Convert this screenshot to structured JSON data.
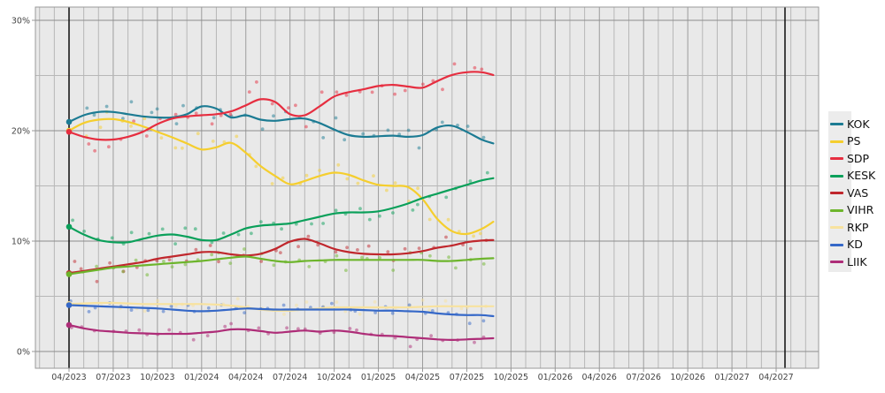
{
  "chart_data": {
    "type": "line",
    "title": "",
    "description": "Finnish party support polling: scatter of polls with smoothed trend lines, election day markers April 2023 and April 2027",
    "x_tick_labels": [
      "04/2023",
      "07/2023",
      "10/2023",
      "01/2024",
      "04/2024",
      "07/2024",
      "10/2024",
      "01/2025",
      "04/2025",
      "07/2025",
      "10/2025",
      "01/2026",
      "04/2026",
      "07/2026",
      "10/2026",
      "01/2027",
      "04/2027"
    ],
    "x_tick_months": [
      0,
      3,
      6,
      9,
      12,
      15,
      18,
      21,
      24,
      27,
      30,
      33,
      36,
      39,
      42,
      45,
      48
    ],
    "x_months_range": [
      -2,
      50
    ],
    "y_tick_labels": [
      "0%",
      "10%",
      "20%",
      "30%"
    ],
    "y_major_values": [
      0,
      10,
      20,
      30
    ],
    "y_minor_step": 5,
    "ylim": [
      -1.5,
      31.2
    ],
    "grid_on": true,
    "legend_position": "right-outside",
    "election_line_months": [
      0,
      48.6
    ],
    "colors": {
      "plot_bg": "#e9e9e9",
      "grid_minor": "#b7b7b7",
      "grid_quarter": "#9c9c9c",
      "grid_major_h": "#8d8d8d",
      "border": "#999999",
      "election_line": "#1a1a1a",
      "tick_text": "#444444"
    },
    "series": [
      {
        "name": "KOK",
        "color": "#1c7b93",
        "jitter": 0.7,
        "values": [
          20.8,
          21.4,
          21.7,
          21.7,
          21.5,
          21.3,
          21.2,
          21.2,
          21.5,
          22.2,
          22.0,
          21.2,
          21.4,
          21.0,
          20.9,
          21.05,
          21.1,
          20.7,
          20.1,
          19.6,
          19.45,
          19.5,
          19.55,
          19.45,
          19.6,
          20.3,
          20.45,
          19.9,
          19.2
        ],
        "end_month": 28.8,
        "end_value": 18.85
      },
      {
        "name": "PS",
        "color": "#f5ce2e",
        "jitter": 0.7,
        "values": [
          20.0,
          20.7,
          21.0,
          21.05,
          20.8,
          20.4,
          19.9,
          19.4,
          18.85,
          18.3,
          18.5,
          18.9,
          18.0,
          16.8,
          15.9,
          15.15,
          15.45,
          15.9,
          16.2,
          16.0,
          15.5,
          15.1,
          15.0,
          14.9,
          13.8,
          12.0,
          10.9,
          10.65,
          11.1
        ],
        "end_month": 28.8,
        "end_value": 11.75
      },
      {
        "name": "SDP",
        "color": "#e62e40",
        "jitter": 0.7,
        "values": [
          19.9,
          19.45,
          19.2,
          19.2,
          19.45,
          19.9,
          20.6,
          21.1,
          21.3,
          21.4,
          21.5,
          21.75,
          22.3,
          22.85,
          22.6,
          21.5,
          21.4,
          22.2,
          23.1,
          23.5,
          23.75,
          24.05,
          24.15,
          24.0,
          23.9,
          24.5,
          25.05,
          25.3,
          25.3
        ],
        "end_month": 28.8,
        "end_value": 25.05
      },
      {
        "name": "KESK",
        "color": "#0aa05a",
        "jitter": 0.55,
        "values": [
          11.3,
          10.6,
          10.1,
          9.9,
          9.9,
          10.2,
          10.5,
          10.6,
          10.4,
          10.1,
          10.1,
          10.6,
          11.15,
          11.4,
          11.5,
          11.6,
          11.9,
          12.2,
          12.5,
          12.6,
          12.6,
          12.7,
          13.0,
          13.4,
          13.9,
          14.3,
          14.7,
          15.1,
          15.5
        ],
        "end_month": 28.8,
        "end_value": 15.7
      },
      {
        "name": "VAS",
        "color": "#c0272d",
        "jitter": 0.45,
        "values": [
          7.1,
          7.3,
          7.5,
          7.7,
          7.9,
          8.1,
          8.4,
          8.6,
          8.8,
          9.0,
          9.0,
          8.8,
          8.7,
          8.85,
          9.3,
          9.95,
          10.2,
          9.8,
          9.3,
          9.0,
          8.85,
          8.8,
          8.8,
          8.9,
          9.1,
          9.4,
          9.6,
          9.9,
          10.05
        ],
        "end_month": 28.8,
        "end_value": 10.1
      },
      {
        "name": "VIHR",
        "color": "#6db52c",
        "jitter": 0.45,
        "values": [
          7.0,
          7.2,
          7.4,
          7.6,
          7.7,
          7.8,
          7.9,
          8.0,
          8.1,
          8.2,
          8.35,
          8.5,
          8.6,
          8.4,
          8.2,
          8.1,
          8.2,
          8.25,
          8.3,
          8.3,
          8.3,
          8.3,
          8.3,
          8.3,
          8.3,
          8.2,
          8.2,
          8.3,
          8.4
        ],
        "end_month": 28.8,
        "end_value": 8.45
      },
      {
        "name": "RKP",
        "color": "#f8e29e",
        "jitter": 0.3,
        "values": [
          4.3,
          4.35,
          4.4,
          4.4,
          4.35,
          4.3,
          4.3,
          4.3,
          4.3,
          4.3,
          4.25,
          4.15,
          4.0,
          3.8,
          3.7,
          3.7,
          3.8,
          3.9,
          4.0,
          4.0,
          4.0,
          4.0,
          4.0,
          4.0,
          4.05,
          4.1,
          4.1,
          4.1,
          4.1
        ],
        "end_month": 28.8,
        "end_value": 4.1
      },
      {
        "name": "KD",
        "color": "#3568c8",
        "jitter": 0.35,
        "values": [
          4.2,
          4.15,
          4.1,
          4.05,
          4.0,
          3.95,
          3.9,
          3.8,
          3.7,
          3.65,
          3.7,
          3.8,
          3.9,
          3.85,
          3.8,
          3.8,
          3.8,
          3.8,
          3.8,
          3.8,
          3.75,
          3.7,
          3.7,
          3.65,
          3.6,
          3.45,
          3.35,
          3.3,
          3.3
        ],
        "end_month": 28.8,
        "end_value": 3.2
      },
      {
        "name": "LIIK",
        "color": "#ae2d78",
        "jitter": 0.35,
        "values": [
          2.4,
          2.1,
          1.9,
          1.8,
          1.7,
          1.65,
          1.6,
          1.6,
          1.6,
          1.7,
          1.8,
          2.0,
          2.0,
          1.85,
          1.7,
          1.8,
          1.9,
          1.8,
          1.9,
          1.8,
          1.6,
          1.45,
          1.4,
          1.3,
          1.2,
          1.1,
          1.05,
          1.1,
          1.15
        ],
        "end_month": 28.8,
        "end_value": 1.2
      }
    ]
  },
  "legend": {
    "items": [
      "KOK",
      "PS",
      "SDP",
      "KESK",
      "VAS",
      "VIHR",
      "RKP",
      "KD",
      "LIIK"
    ]
  }
}
